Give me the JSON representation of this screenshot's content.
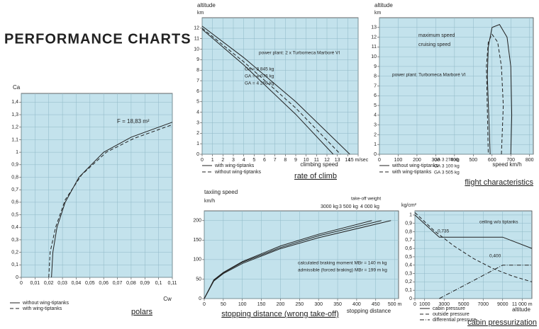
{
  "title": "PERFORMANCE CHARTS",
  "chart_data": [
    {
      "type": "line",
      "title": "polars",
      "x_label": "Cw",
      "y_label": "Ca",
      "annotations": [
        "F = 18,83 m²"
      ],
      "legend": "below",
      "series": [
        {
          "name": "without wing-tiptanks",
          "color": "#222222",
          "style": "solid",
          "x": [
            0.022,
            0.023,
            0.026,
            0.032,
            0.042,
            0.06,
            0.08,
            0.11
          ],
          "values": [
            0,
            0.2,
            0.4,
            0.6,
            0.8,
            1.0,
            1.12,
            1.24
          ]
        },
        {
          "name": "with wing-tiptanks",
          "color": "#222222",
          "style": "dashed",
          "x": [
            0.02,
            0.021,
            0.025,
            0.032,
            0.044,
            0.062,
            0.082,
            0.11
          ],
          "values": [
            0,
            0.2,
            0.4,
            0.62,
            0.82,
            1.0,
            1.11,
            1.22
          ]
        }
      ],
      "xlim": [
        0,
        0.11
      ],
      "ylim": [
        0,
        1.47
      ],
      "xticks": [
        0,
        {
          "value": 0.01,
          "label": "0,01"
        },
        {
          "value": 0.02,
          "label": "0,02"
        },
        {
          "value": 0.03,
          "label": "0,03"
        },
        {
          "value": 0.04,
          "label": "0,04"
        },
        {
          "value": 0.05,
          "label": "0,05"
        },
        {
          "value": 0.06,
          "label": "0,06"
        },
        {
          "value": 0.07,
          "label": "0,07"
        },
        {
          "value": 0.08,
          "label": "0,08"
        },
        {
          "value": 0.09,
          "label": "0,09"
        },
        {
          "value": 0.1,
          "label": "0,1"
        },
        {
          "value": 0.11,
          "label": "0,11"
        }
      ],
      "yticks": [
        0,
        {
          "value": 0.1,
          "label": "0,1"
        },
        {
          "value": 0.2,
          "label": "0,2"
        },
        {
          "value": 0.3,
          "label": "0,3"
        },
        {
          "value": 0.4,
          "label": "0,4"
        },
        {
          "value": 0.5,
          "label": "0,5"
        },
        {
          "value": 0.6,
          "label": "0,6"
        },
        {
          "value": 0.7,
          "label": "0,7"
        },
        {
          "value": 0.8,
          "label": "0,8"
        },
        {
          "value": 0.9,
          "label": "0,9"
        },
        1,
        {
          "value": 1.1,
          "label": "1,1"
        },
        {
          "value": 1.2,
          "label": "1,2"
        },
        {
          "value": 1.3,
          "label": "1,3"
        },
        {
          "value": 1.4,
          "label": "1,4"
        }
      ],
      "grid": true,
      "background": "#c3e2ec"
    },
    {
      "type": "line",
      "title": "rate of climb",
      "x_label": "climbing speed",
      "y_label": "altitude",
      "y_unit": "km",
      "annotations": [
        "power plant: 2 x Turbomeca Marboré VI",
        "GA = 3 845 kg",
        "GA = 4 076 kg",
        "GA = 4 266 kg"
      ],
      "legend_notes": [
        {
          "name": "with wing-tiptanks",
          "style": "solid"
        },
        {
          "name": "without wing-tiptanks",
          "style": "dashed"
        }
      ],
      "series": [
        {
          "name": "",
          "color": "#222222",
          "style": "solid",
          "x": [
            0,
            4,
            9,
            14.2
          ],
          "values": [
            12.2,
            9.2,
            5,
            0
          ]
        },
        {
          "name": "",
          "color": "#222222",
          "style": "dashed",
          "x": [
            0,
            4,
            9,
            13.3
          ],
          "values": [
            12.0,
            8.8,
            4.4,
            0
          ]
        },
        {
          "name": "",
          "color": "#222222",
          "style": "solid",
          "x": [
            0,
            4,
            9,
            12.6
          ],
          "values": [
            11.9,
            8.5,
            3.8,
            0
          ]
        }
      ],
      "xlim": [
        0,
        15
      ],
      "ylim": [
        0,
        13
      ],
      "xticks": [
        0,
        1,
        2,
        3,
        4,
        5,
        6,
        7,
        8,
        9,
        10,
        11,
        12,
        13,
        14,
        {
          "value": 15,
          "label": "15 m/sec"
        }
      ],
      "yticks": [
        0,
        1,
        2,
        3,
        4,
        5,
        6,
        7,
        8,
        9,
        10,
        11,
        12
      ],
      "grid": true,
      "background": "#c3e2ec"
    },
    {
      "type": "line",
      "title": "flight characteristics",
      "x_label": "speed km/h",
      "y_label": "altitude",
      "y_unit": "km",
      "annotations": [
        "power plant: Turbomeca Marboré VI",
        "GA 3 270 kg",
        "GA 3 100 kg",
        "GA 3 505 kg"
      ],
      "legend_notes": [
        {
          "name": "without wing-tiptanks",
          "style": "solid"
        },
        {
          "name": "with wing-tiptanks",
          "style": "dashed"
        }
      ],
      "series": [
        {
          "name": "maximum speed",
          "color": "#222222",
          "style": "solid",
          "x": [
            700,
            705,
            700,
            680,
            640,
            600,
            580,
            575,
            590
          ],
          "values": [
            0,
            4,
            9,
            12,
            13.3,
            13,
            11,
            8,
            0
          ]
        },
        {
          "name": "cruising speed",
          "color": "#222222",
          "style": "dashed",
          "x": [
            650,
            660,
            650,
            630,
            600,
            580,
            570,
            580
          ],
          "values": [
            0,
            5,
            9,
            11.5,
            12.3,
            11.5,
            9,
            0
          ]
        }
      ],
      "xlim": [
        0,
        820
      ],
      "ylim": [
        0,
        14
      ],
      "xticks": [
        0,
        100,
        200,
        300,
        400,
        500,
        600,
        700,
        800
      ],
      "yticks": [
        0,
        1,
        2,
        3,
        4,
        5,
        6,
        7,
        8,
        9,
        10,
        11,
        12,
        13
      ],
      "grid": true,
      "background": "#c3e2ec"
    },
    {
      "type": "line",
      "title": "stopping distance (wrong take-off)",
      "x_label": "stopping distance",
      "y_label": "taxiing speed",
      "y_unit": "km/h",
      "annotations": [
        "take-off weight",
        "calculated braking moment   MBr = 140 m kg",
        "admissible (forced braking)   MBr = 199 m kg"
      ],
      "series": [
        {
          "name": "3000 kg",
          "color": "#222222",
          "style": "solid",
          "x": [
            0,
            25,
            50,
            100,
            200,
            300,
            440
          ],
          "values": [
            0,
            48,
            67,
            95,
            135,
            165,
            200
          ]
        },
        {
          "name": "3 500 kg",
          "color": "#222222",
          "style": "solid",
          "x": [
            0,
            25,
            50,
            100,
            200,
            300,
            465
          ],
          "values": [
            0,
            46,
            66,
            93,
            131,
            161,
            200
          ]
        },
        {
          "name": "4 000 kg",
          "color": "#222222",
          "style": "solid",
          "x": [
            0,
            25,
            50,
            100,
            200,
            300,
            490
          ],
          "values": [
            0,
            45,
            64,
            90,
            128,
            156,
            200
          ]
        }
      ],
      "xlim": [
        0,
        510
      ],
      "ylim": [
        0,
        225
      ],
      "xticks": [
        0,
        50,
        100,
        150,
        200,
        250,
        300,
        350,
        400,
        450,
        {
          "value": 500,
          "label": "500 m"
        }
      ],
      "yticks": [
        0,
        50,
        100,
        150,
        200
      ],
      "grid": true,
      "background": "#c3e2ec"
    },
    {
      "type": "line",
      "title": "cabin pressurization",
      "x_label": "altitude",
      "y_unit": "kg/cm²",
      "annotations": [
        "ceiling w/o tiptanks",
        "0,735",
        "0,400"
      ],
      "legend": "below",
      "series": [
        {
          "name": "cabin pressure",
          "color": "#222222",
          "style": "solid",
          "x": [
            0,
            2500,
            9000,
            12000
          ],
          "values": [
            1.0,
            0.735,
            0.735,
            0.6
          ]
        },
        {
          "name": "outside pressure",
          "color": "#222222",
          "style": "dashed",
          "x": [
            0,
            2000,
            4000,
            6000,
            8000,
            10000,
            12000
          ],
          "values": [
            1.03,
            0.81,
            0.63,
            0.48,
            0.36,
            0.27,
            0.2
          ]
        },
        {
          "name": "differential pressure",
          "color": "#222222",
          "style": "dashdot",
          "x": [
            2500,
            9000,
            12000
          ],
          "values": [
            0,
            0.4,
            0.4
          ]
        }
      ],
      "xlim": [
        0,
        12000
      ],
      "ylim": [
        0,
        1.05
      ],
      "xticks": [
        0,
        1000,
        3000,
        5000,
        7000,
        9000,
        {
          "value": 11000,
          "label": "11 000 m"
        }
      ],
      "yticks": [
        0,
        {
          "value": 0.1,
          "label": "0,1"
        },
        {
          "value": 0.2,
          "label": "0,2"
        },
        {
          "value": 0.3,
          "label": "0,3"
        },
        {
          "value": 0.4,
          "label": "0,4"
        },
        {
          "value": 0.5,
          "label": "0,5"
        },
        {
          "value": 0.6,
          "label": "0,6"
        },
        {
          "value": 0.7,
          "label": "0,7"
        },
        {
          "value": 0.8,
          "label": "0,8"
        },
        {
          "value": 0.9,
          "label": "0,9"
        },
        1
      ],
      "grid": true,
      "background": "#c3e2ec"
    }
  ]
}
